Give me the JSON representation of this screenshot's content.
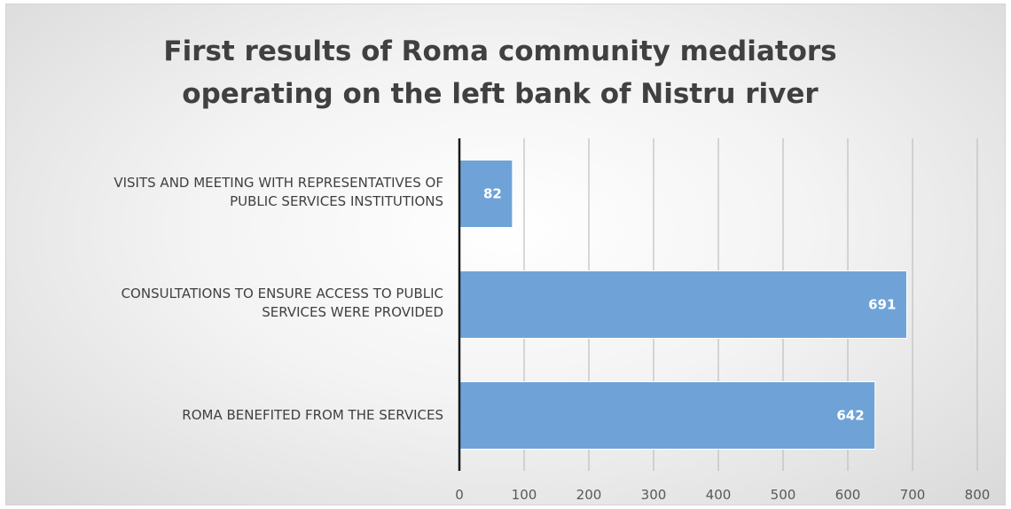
{
  "chart_data": {
    "type": "bar",
    "orientation": "horizontal",
    "title": "First results of Roma community mediators operating on the left bank of Nistru river",
    "title_lines": [
      "First results of Roma community mediators",
      "operating on the left bank of Nistru river"
    ],
    "categories": [
      {
        "label": "Visits and meeting with representatives of public services institutions",
        "lines": [
          "VISITS AND MEETING WITH REPRESENTATIVES OF",
          "PUBLIC SERVICES INSTITUTIONS"
        ]
      },
      {
        "label": "Consultations to ensure access to public services were provided",
        "lines": [
          "CONSULTATIONS TO ENSURE ACCESS TO PUBLIC",
          "SERVICES WERE PROVIDED"
        ]
      },
      {
        "label": "Roma benefited from the services",
        "lines": [
          "ROMA BENEFITED FROM THE SERVICES"
        ]
      }
    ],
    "values": [
      82,
      691,
      642
    ],
    "data_labels": [
      "82",
      "691",
      "642"
    ],
    "xlim": [
      0,
      800
    ],
    "xticks": [
      "0",
      "100",
      "200",
      "300",
      "400",
      "500",
      "600",
      "700",
      "800"
    ],
    "gridlines": true,
    "legend": "none",
    "bar_color": "#6fa3d8"
  }
}
